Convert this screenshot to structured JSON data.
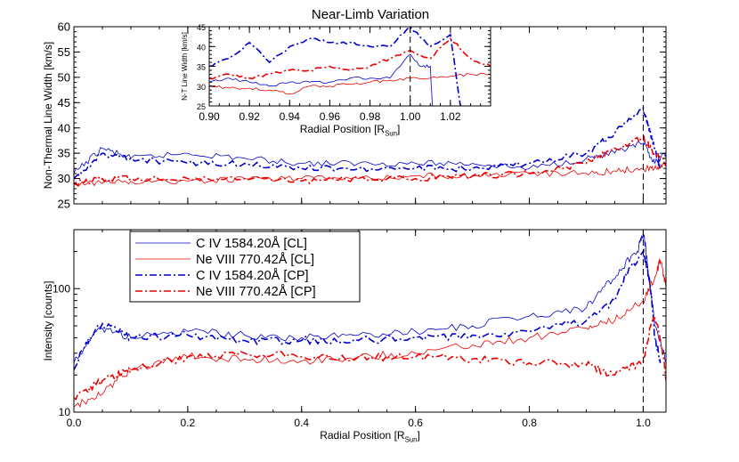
{
  "title": "Near-Limb Variation",
  "chart_data": [
    {
      "type": "line",
      "panel": "top",
      "ylabel": "Non-Thermal Line Width [km/s]",
      "xlim": [
        0.0,
        1.04
      ],
      "ylim": [
        25,
        60
      ],
      "yticks": [
        25,
        30,
        35,
        40,
        45,
        50,
        55,
        60
      ],
      "series": [
        {
          "name": "C IV 1584.20Å [CL]",
          "color": "#0000cc",
          "dash": "solid",
          "x": [
            0.0,
            0.05,
            0.1,
            0.2,
            0.3,
            0.4,
            0.5,
            0.6,
            0.7,
            0.8,
            0.9,
            0.95,
            1.0,
            1.02,
            1.04
          ],
          "y": [
            31,
            36,
            34,
            35,
            34,
            33,
            33,
            33,
            33,
            32,
            34,
            35,
            37,
            33,
            35
          ]
        },
        {
          "name": "Ne VIII 770.42Å [CL]",
          "color": "#ee0000",
          "dash": "solid",
          "x": [
            0.0,
            0.05,
            0.1,
            0.2,
            0.3,
            0.4,
            0.5,
            0.6,
            0.7,
            0.8,
            0.9,
            0.95,
            1.0,
            1.02,
            1.04
          ],
          "y": [
            29,
            29,
            29.5,
            29.5,
            30,
            30,
            30,
            30.5,
            30.5,
            31,
            31,
            31.5,
            32,
            32,
            33
          ]
        },
        {
          "name": "C IV 1584.20Å [CP]",
          "color": "#0000cc",
          "dash": "dashdot",
          "x": [
            0.0,
            0.05,
            0.1,
            0.2,
            0.3,
            0.4,
            0.5,
            0.6,
            0.7,
            0.8,
            0.9,
            0.95,
            1.0,
            1.01,
            1.02,
            1.03
          ],
          "y": [
            30,
            35,
            34,
            33,
            33,
            32,
            32,
            32,
            32,
            33,
            35,
            39,
            44,
            40,
            36,
            32
          ]
        },
        {
          "name": "Ne VIII 770.42Å [CP]",
          "color": "#ee0000",
          "dash": "dashdot",
          "x": [
            0.0,
            0.05,
            0.1,
            0.2,
            0.3,
            0.4,
            0.5,
            0.6,
            0.7,
            0.8,
            0.9,
            0.95,
            1.0,
            1.02,
            1.04
          ],
          "y": [
            29,
            30,
            30,
            30,
            30,
            29.5,
            30,
            30,
            30.5,
            31,
            33,
            36,
            38,
            35,
            33
          ]
        }
      ]
    },
    {
      "type": "line",
      "panel": "inset",
      "ylabel": "N-T Line Width [km/s]",
      "xlabel": "Radial Position [R",
      "xlabel_sub": "Sun",
      "xlabel_end": "]",
      "xlim": [
        0.9,
        1.04
      ],
      "ylim": [
        25,
        45
      ],
      "xticks": [
        0.9,
        0.92,
        0.94,
        0.96,
        0.98,
        1.0,
        1.02
      ],
      "xticklabels": [
        "0.90",
        "0.92",
        "0.94",
        "0.96",
        "0.98",
        "1.00",
        "1.02"
      ],
      "yticks": [
        25,
        30,
        35,
        40,
        45
      ],
      "series": [
        {
          "name": "C IV 1584.20Å [CL]",
          "color": "#0000cc",
          "dash": "solid",
          "x": [
            0.9,
            0.91,
            0.92,
            0.93,
            0.94,
            0.95,
            0.96,
            0.97,
            0.98,
            0.99,
            1.0,
            1.005,
            1.01,
            1.011
          ],
          "y": [
            31,
            32,
            31,
            30,
            31,
            31,
            31,
            32,
            32,
            32,
            38,
            35,
            35,
            25
          ]
        },
        {
          "name": "Ne VIII 770.42Å [CL]",
          "color": "#ee0000",
          "dash": "solid",
          "x": [
            0.9,
            0.91,
            0.92,
            0.93,
            0.94,
            0.95,
            0.96,
            0.97,
            0.98,
            0.99,
            1.0,
            1.01,
            1.02,
            1.03,
            1.04
          ],
          "y": [
            30,
            29.5,
            29.5,
            29,
            28,
            30,
            30,
            30.5,
            31,
            31.5,
            32,
            32,
            32.5,
            33,
            33
          ]
        },
        {
          "name": "C IV 1584.20Å [CP]",
          "color": "#0000cc",
          "dash": "dashdot",
          "x": [
            0.9,
            0.91,
            0.92,
            0.93,
            0.94,
            0.95,
            0.96,
            0.97,
            0.98,
            0.99,
            1.0,
            1.01,
            1.02,
            1.025
          ],
          "y": [
            35,
            37,
            41,
            36,
            40,
            42,
            41,
            41,
            40,
            40,
            45,
            40,
            43,
            25
          ]
        },
        {
          "name": "Ne VIII 770.42Å [CP]",
          "color": "#ee0000",
          "dash": "dashdot",
          "x": [
            0.9,
            0.91,
            0.92,
            0.93,
            0.94,
            0.95,
            0.96,
            0.97,
            0.98,
            0.99,
            1.0,
            1.01,
            1.02,
            1.03,
            1.04
          ],
          "y": [
            32,
            33,
            32,
            33,
            34,
            34,
            35,
            34,
            35,
            37,
            39,
            37,
            42,
            37,
            35
          ]
        }
      ]
    },
    {
      "type": "line",
      "panel": "bottom",
      "ylabel": "Intensity [counts]",
      "xlabel": "Radial Position [R",
      "xlabel_sub": "Sun",
      "xlabel_end": "]",
      "xlim": [
        0.0,
        1.04
      ],
      "ylim": [
        10,
        300
      ],
      "yscale": "log",
      "yticks": [
        10,
        100
      ],
      "xticks": [
        0.0,
        0.2,
        0.4,
        0.6,
        0.8,
        1.0
      ],
      "xticklabels": [
        "0.0",
        "0.2",
        "0.4",
        "0.6",
        "0.8",
        "1.0"
      ],
      "legend": {
        "placement": "top-left",
        "entries": [
          "C IV 1584.20Å [CL]",
          "Ne VIII 770.42Å [CL]",
          "C IV 1584.20Å [CP]",
          "Ne VIII 770.42Å [CP]"
        ]
      },
      "series": [
        {
          "name": "C IV 1584.20Å [CL]",
          "color": "#0000cc",
          "dash": "solid",
          "x": [
            0.0,
            0.05,
            0.1,
            0.2,
            0.3,
            0.4,
            0.5,
            0.6,
            0.7,
            0.8,
            0.9,
            0.95,
            0.99,
            1.0,
            1.01,
            1.02,
            1.04
          ],
          "y": [
            25,
            48,
            40,
            45,
            42,
            40,
            42,
            45,
            50,
            60,
            70,
            120,
            200,
            280,
            120,
            50,
            25
          ]
        },
        {
          "name": "Ne VIII 770.42Å [CL]",
          "color": "#ee0000",
          "dash": "solid",
          "x": [
            0.0,
            0.05,
            0.1,
            0.2,
            0.3,
            0.4,
            0.5,
            0.6,
            0.7,
            0.8,
            0.9,
            0.95,
            1.0,
            1.02,
            1.03,
            1.04
          ],
          "y": [
            11,
            14,
            22,
            28,
            27,
            26,
            28,
            30,
            35,
            40,
            48,
            55,
            80,
            120,
            170,
            100
          ]
        },
        {
          "name": "C IV 1584.20Å [CP]",
          "color": "#0000cc",
          "dash": "dashdot",
          "x": [
            0.0,
            0.05,
            0.1,
            0.2,
            0.3,
            0.4,
            0.5,
            0.6,
            0.7,
            0.8,
            0.9,
            0.95,
            1.0,
            1.01,
            1.02,
            1.03
          ],
          "y": [
            22,
            52,
            40,
            42,
            38,
            38,
            38,
            40,
            42,
            45,
            55,
            80,
            200,
            120,
            40,
            25
          ]
        },
        {
          "name": "Ne VIII 770.42Å [CP]",
          "color": "#ee0000",
          "dash": "dashdot",
          "x": [
            0.0,
            0.05,
            0.1,
            0.2,
            0.3,
            0.4,
            0.5,
            0.6,
            0.7,
            0.8,
            0.9,
            0.95,
            1.0,
            1.02,
            1.04
          ],
          "y": [
            13,
            18,
            22,
            28,
            30,
            28,
            28,
            28,
            27,
            25,
            24,
            20,
            25,
            60,
            18
          ]
        }
      ]
    }
  ]
}
